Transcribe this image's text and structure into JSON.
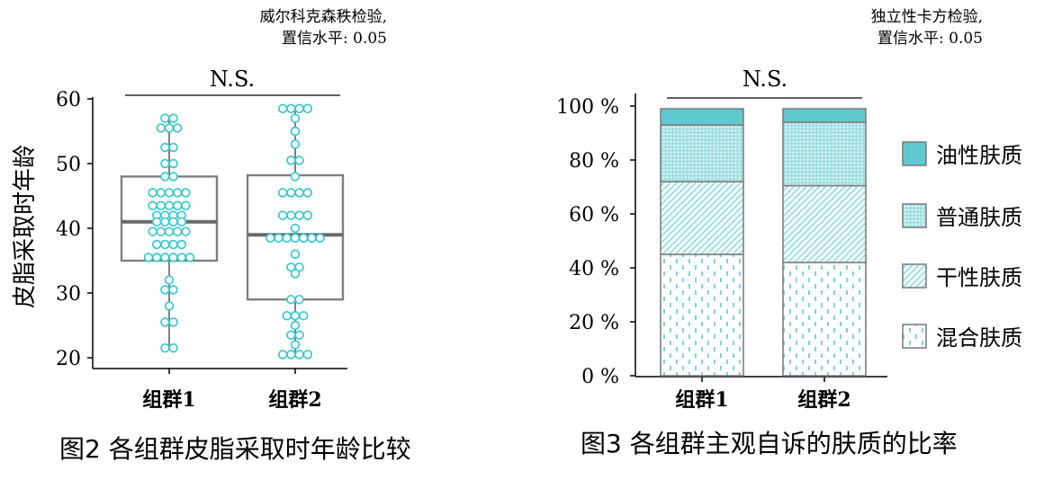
{
  "chart_data": [
    {
      "type": "box",
      "test_note_line1": "威尔科克森秩检验,",
      "test_note_line2": "置信水平: 0.05",
      "significance": "N.S.",
      "ylabel": "皮脂采取时年龄",
      "ylim": [
        20,
        60
      ],
      "yticks": [
        "20",
        "30",
        "40",
        "50",
        "60"
      ],
      "categories": [
        "组群1",
        "组群2"
      ],
      "boxes": [
        {
          "q1": 35,
          "median": 41,
          "q3": 48,
          "whisker_low": 21.5,
          "whisker_high": 57
        },
        {
          "q1": 29,
          "median": 39,
          "q3": 48.2,
          "whisker_low": 20.5,
          "whisker_high": 58.5
        }
      ],
      "points": [
        [
          [
            57,
            2
          ],
          [
            55.5,
            3
          ],
          [
            52.5,
            2
          ],
          [
            50,
            2
          ],
          [
            48,
            2
          ],
          [
            45.5,
            5
          ],
          [
            43.5,
            5
          ],
          [
            42,
            4
          ],
          [
            41,
            4
          ],
          [
            39.5,
            5
          ],
          [
            37.5,
            4
          ],
          [
            35.5,
            6
          ],
          [
            32,
            1
          ],
          [
            30.5,
            2
          ],
          [
            28,
            1
          ],
          [
            25.5,
            2
          ],
          [
            21.5,
            2
          ]
        ],
        [
          [
            58.5,
            4
          ],
          [
            57,
            1
          ],
          [
            55,
            1
          ],
          [
            53,
            1
          ],
          [
            50.5,
            2
          ],
          [
            48,
            1
          ],
          [
            45.5,
            4
          ],
          [
            42,
            4
          ],
          [
            40,
            1
          ],
          [
            38.5,
            7
          ],
          [
            36,
            1
          ],
          [
            34,
            2
          ],
          [
            33,
            1
          ],
          [
            29,
            2
          ],
          [
            26.5,
            3
          ],
          [
            25,
            1
          ],
          [
            23.5,
            2
          ],
          [
            22,
            1
          ],
          [
            20.5,
            4
          ]
        ]
      ],
      "caption": "图2  各组群皮脂采取时年龄比较"
    },
    {
      "type": "stacked_bar",
      "test_note_line1": "独立性卡方检验,",
      "test_note_line2": "置信水平: 0.05",
      "significance": "N.S.",
      "ylim": [
        0,
        100
      ],
      "yticks": [
        "0 %",
        "20 %",
        "40 %",
        "60 %",
        "80 %",
        "100 %"
      ],
      "categories": [
        "组群1",
        "组群2"
      ],
      "series": [
        {
          "name": "混合肤质",
          "values": [
            45,
            42
          ]
        },
        {
          "name": "干性肤质",
          "values": [
            27,
            28.5
          ]
        },
        {
          "name": "普通肤质",
          "values": [
            21,
            23.5
          ]
        },
        {
          "name": "油性肤质",
          "values": [
            6,
            5
          ]
        }
      ],
      "legend_order": [
        "油性肤质",
        "普通肤质",
        "干性肤质",
        "混合肤质"
      ],
      "caption": "图3  各组群主观自诉的肤质的比率"
    }
  ],
  "colors": {
    "accent": "#5ec9cf",
    "marker": "#3cc8cc",
    "frame": "#7f7f7f"
  }
}
